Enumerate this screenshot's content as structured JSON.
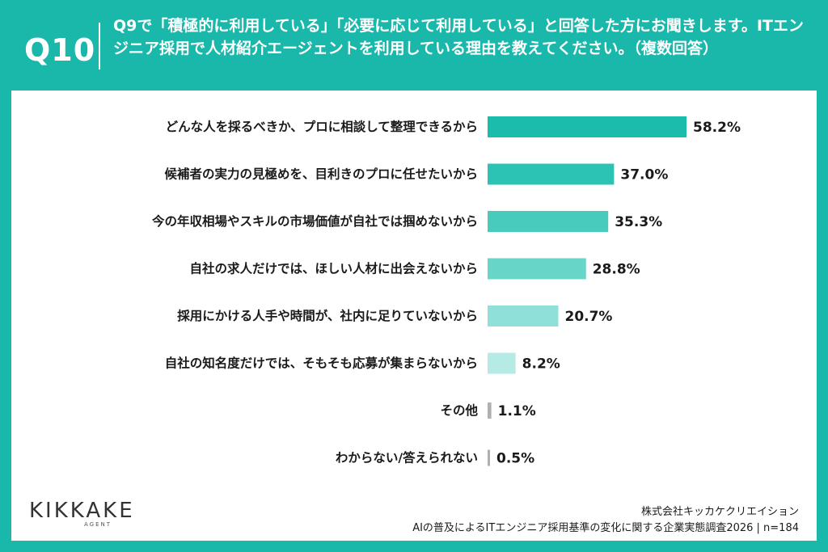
{
  "header": {
    "question_number": "Q10",
    "question_text": "Q9で「積極的に利用している」「必要に応じて利用している」と回答した方にお聞きします。ITエンジニア採用で人材紹介エージェントを利用している理由を教えてください。（複数回答）"
  },
  "chart_data": {
    "type": "bar",
    "orientation": "horizontal",
    "categories": [
      "どんな人を採るべきか、プロに相談して整理できるから",
      "候補者の実力の見極めを、目利きのプロに任せたいから",
      "今の年収相場やスキルの市場価値が自社では掴めないから",
      "自社の求人だけでは、ほしい人材に出会えないから",
      "採用にかける人手や時間が、社内に足りていないから",
      "自社の知名度だけでは、そもそも応募が集まらないから",
      "その他",
      "わからない/答えられない"
    ],
    "values": [
      58.2,
      37.0,
      35.3,
      28.8,
      20.7,
      8.2,
      1.1,
      0.5
    ],
    "value_labels": [
      "58.2%",
      "37.0%",
      "35.3%",
      "28.8%",
      "20.7%",
      "8.2%",
      "1.1%",
      "0.5%"
    ],
    "colors": [
      "#1cbcad",
      "#2cc3b4",
      "#48cbbd",
      "#68d5c9",
      "#8ee0d8",
      "#b6ebe5",
      "#b0b0b0",
      "#b0b0b0"
    ],
    "xlim": [
      0,
      60
    ],
    "grid": false,
    "title": "",
    "xlabel": "",
    "ylabel": ""
  },
  "footer": {
    "logo_text": "KIKKAKE",
    "logo_sub": "AGENT",
    "company": "株式会社キッカケクリエイション",
    "survey": "AIの普及によるITエンジニア採用基準の変化に関する企業実態調査2026 | n=184"
  }
}
